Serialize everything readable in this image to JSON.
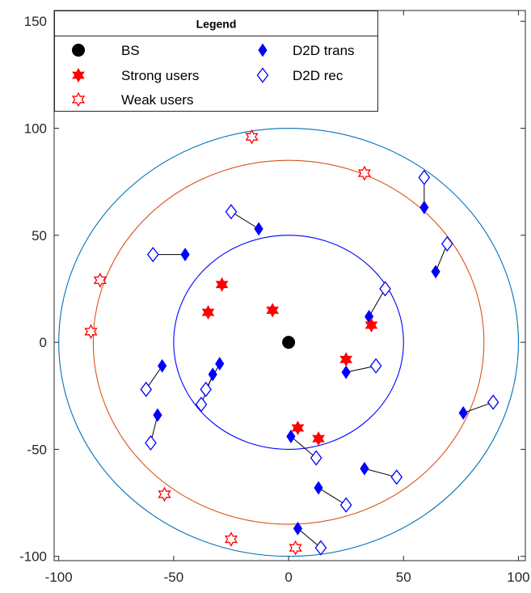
{
  "chart_data": {
    "type": "scatter",
    "title": "",
    "xlabel": "",
    "ylabel": "",
    "xlim": [
      -102,
      103
    ],
    "ylim": [
      -102,
      155
    ],
    "xticks": [
      -100,
      -50,
      0,
      50,
      100
    ],
    "yticks": [
      -100,
      -50,
      0,
      50,
      100,
      150
    ],
    "xtick_labels": [
      "-100",
      "-50",
      "0",
      "50",
      "100"
    ],
    "ytick_labels": [
      "-100",
      "-50",
      "0",
      "50",
      "100",
      "150"
    ],
    "grid": false,
    "legend": {
      "title": "Legend",
      "placement": "top-left",
      "entries": [
        {
          "label": "BS",
          "marker": "filled-circle",
          "color": "#000000"
        },
        {
          "label": "Strong users",
          "marker": "filled-hexagram",
          "color": "#ff0000"
        },
        {
          "label": "Weak users",
          "marker": "open-hexagram",
          "color": "#ff0000"
        },
        {
          "label": "D2D trans",
          "marker": "filled-diamond",
          "color": "#0000ff"
        },
        {
          "label": "D2D rec",
          "marker": "open-diamond",
          "color": "#0000ff"
        }
      ]
    },
    "circles": [
      {
        "center": [
          0,
          0
        ],
        "radius": 100,
        "color": "#0072bd"
      },
      {
        "center": [
          0,
          0
        ],
        "radius": 85,
        "color": "#d95319"
      },
      {
        "center": [
          0,
          0
        ],
        "radius": 50,
        "color": "#0000ff"
      }
    ],
    "bs": [
      [
        0,
        0
      ]
    ],
    "strong_users": [
      [
        -29,
        27
      ],
      [
        -35,
        14
      ],
      [
        -7,
        15
      ],
      [
        36,
        8
      ],
      [
        25,
        -8
      ],
      [
        4,
        -40
      ],
      [
        13,
        -45
      ]
    ],
    "weak_users": [
      [
        -16,
        96
      ],
      [
        33,
        79
      ],
      [
        -82,
        29
      ],
      [
        -86,
        5
      ],
      [
        -54,
        -71
      ],
      [
        -25,
        -92
      ],
      [
        3,
        -96
      ]
    ],
    "d2d_pairs": [
      {
        "trans": [
          -13,
          53
        ],
        "rec": [
          -25,
          61
        ]
      },
      {
        "trans": [
          -45,
          41
        ],
        "rec": [
          -59,
          41
        ]
      },
      {
        "trans": [
          59,
          63
        ],
        "rec": [
          59,
          77
        ]
      },
      {
        "trans": [
          64,
          33
        ],
        "rec": [
          69,
          46
        ]
      },
      {
        "trans": [
          35,
          12
        ],
        "rec": [
          42,
          25
        ]
      },
      {
        "trans": [
          -55,
          -11
        ],
        "rec": [
          -62,
          -22
        ]
      },
      {
        "trans": [
          -57,
          -34
        ],
        "rec": [
          -60,
          -47
        ]
      },
      {
        "trans": [
          -30,
          -10
        ],
        "rec": [
          -36,
          -22
        ]
      },
      {
        "trans": [
          -33,
          -15
        ],
        "rec": [
          -38,
          -29
        ]
      },
      {
        "trans": [
          25,
          -14
        ],
        "rec": [
          38,
          -11
        ]
      },
      {
        "trans": [
          1,
          -44
        ],
        "rec": [
          12,
          -54
        ]
      },
      {
        "trans": [
          76,
          -33
        ],
        "rec": [
          89,
          -28
        ]
      },
      {
        "trans": [
          33,
          -59
        ],
        "rec": [
          47,
          -63
        ]
      },
      {
        "trans": [
          13,
          -68
        ],
        "rec": [
          25,
          -76
        ]
      },
      {
        "trans": [
          4,
          -87
        ],
        "rec": [
          14,
          -96
        ]
      }
    ],
    "colors": {
      "bs": "#000000",
      "users": "#ff0000",
      "d2d": "#0000ff",
      "pair_line": "#000000",
      "axes": "#262626"
    }
  }
}
